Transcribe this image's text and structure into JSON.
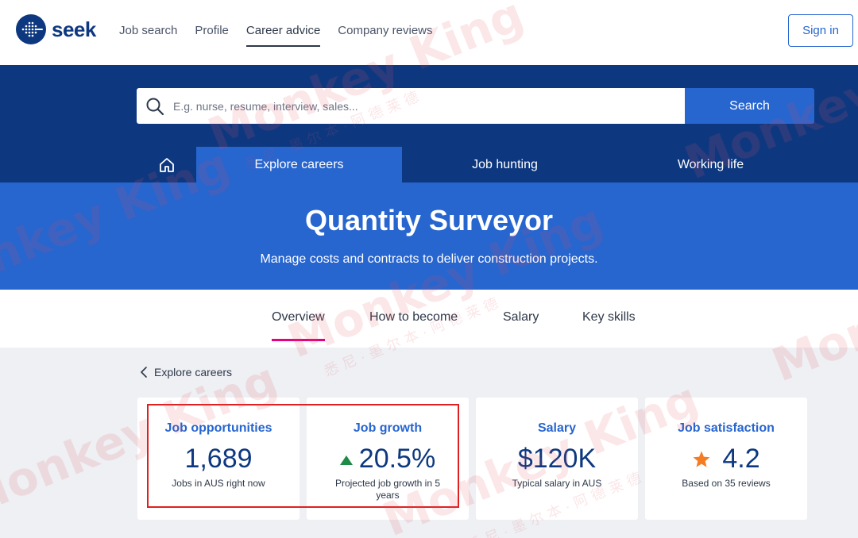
{
  "brand": {
    "name": "seek"
  },
  "topnav": {
    "links": [
      "Job search",
      "Profile",
      "Career advice",
      "Company reviews"
    ],
    "active_index": 2,
    "signin_label": "Sign in"
  },
  "search": {
    "placeholder": "E.g. nurse, resume, interview, sales...",
    "button_label": "Search"
  },
  "section_nav": {
    "home_icon": "home-icon",
    "tabs": [
      "Explore careers",
      "Job hunting",
      "Working life"
    ],
    "active_index": 0
  },
  "hero": {
    "title": "Quantity Surveyor",
    "subtitle": "Manage costs and contracts to deliver construction projects."
  },
  "subtabs": {
    "items": [
      "Overview",
      "How to become",
      "Salary",
      "Key skills"
    ],
    "active_index": 0
  },
  "back_link": {
    "label": "Explore careers"
  },
  "stats": [
    {
      "title": "Job opportunities",
      "value": "1,689",
      "caption": "Jobs in AUS right now"
    },
    {
      "title": "Job growth",
      "value": "20.5%",
      "caption": "Projected job growth in 5 years",
      "icon": "up-triangle-icon"
    },
    {
      "title": "Salary",
      "value": "$120K",
      "caption": "Typical salary in AUS"
    },
    {
      "title": "Job satisfaction",
      "value": "4.2",
      "caption": "Based on 35 reviews",
      "icon": "star-icon"
    }
  ],
  "watermark": {
    "text": "Monkey King",
    "subtext": "悉尼·墨尔本·阿德莱德"
  },
  "colors": {
    "navy": "#0d3880",
    "blue": "#2765cf",
    "pink_underline": "#e60278",
    "growth_green": "#1f8a48",
    "star_orange": "#f57c22",
    "highlight_red": "#e02020"
  }
}
